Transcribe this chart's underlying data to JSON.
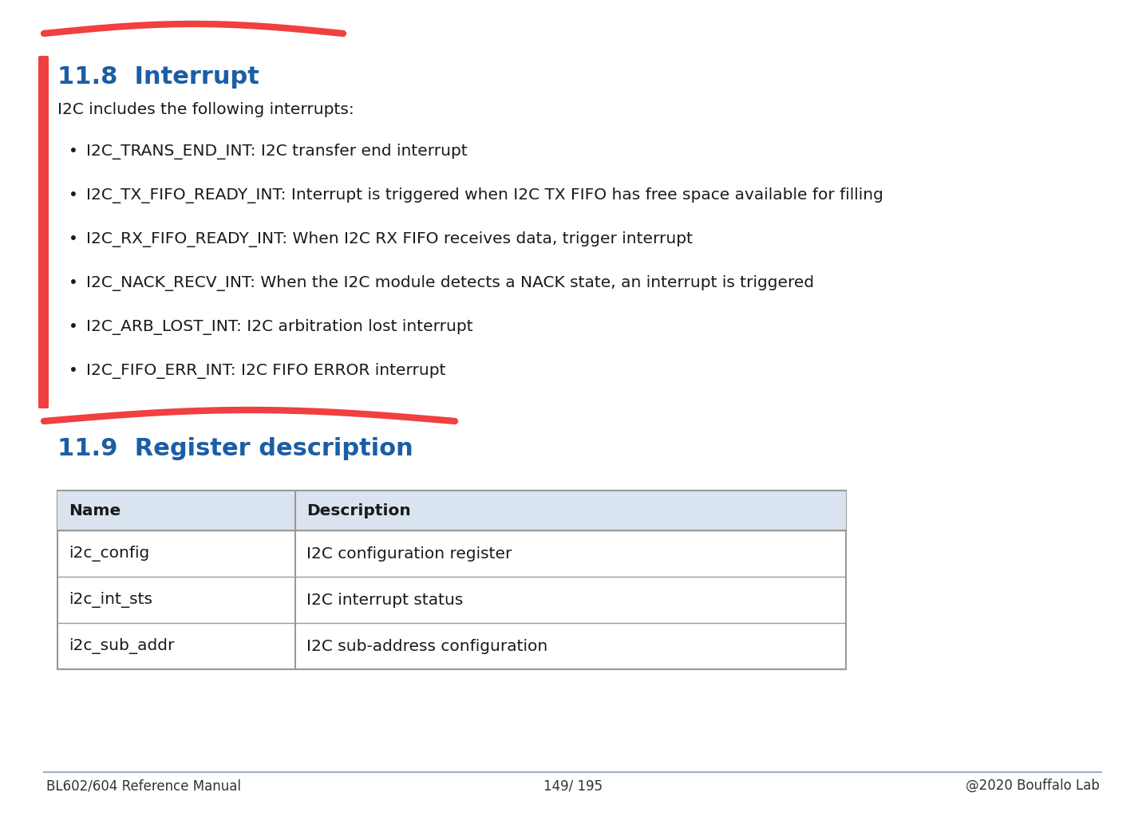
{
  "page_bg": "#ffffff",
  "section_title_color": "#1b5ea6",
  "text_color": "#1a1a1a",
  "red_annotation_color": "#f04040",
  "table_header_bg": "#d9e4f0",
  "table_border_color": "#999999",
  "table_row_bg": "#ffffff",
  "footer_line_color": "#9ab0c8",
  "footer_text_color": "#333333",
  "section_8_title": "11.8  Interrupt",
  "section_8_intro": "I2C includes the following interrupts:",
  "interrupts": [
    "I2C_TRANS_END_INT: I2C transfer end interrupt",
    "I2C_TX_FIFO_READY_INT: Interrupt is triggered when I2C TX FIFO has free space available for filling",
    "I2C_RX_FIFO_READY_INT: When I2C RX FIFO receives data, trigger interrupt",
    "I2C_NACK_RECV_INT: When the I2C module detects a NACK state, an interrupt is triggered",
    "I2C_ARB_LOST_INT: I2C arbitration lost interrupt",
    "I2C_FIFO_ERR_INT: I2C FIFO ERROR interrupt"
  ],
  "section_9_title": "11.9  Register description",
  "table_headers": [
    "Name",
    "Description"
  ],
  "table_rows": [
    [
      "i2c_config",
      "I2C configuration register"
    ],
    [
      "i2c_int_sts",
      "I2C interrupt status"
    ],
    [
      "i2c_sub_addr",
      "I2C sub-address configuration"
    ]
  ],
  "footer_left": "BL602/604 Reference Manual",
  "footer_center": "149/ 195",
  "footer_right": "@2020 Bouffalo Lab"
}
